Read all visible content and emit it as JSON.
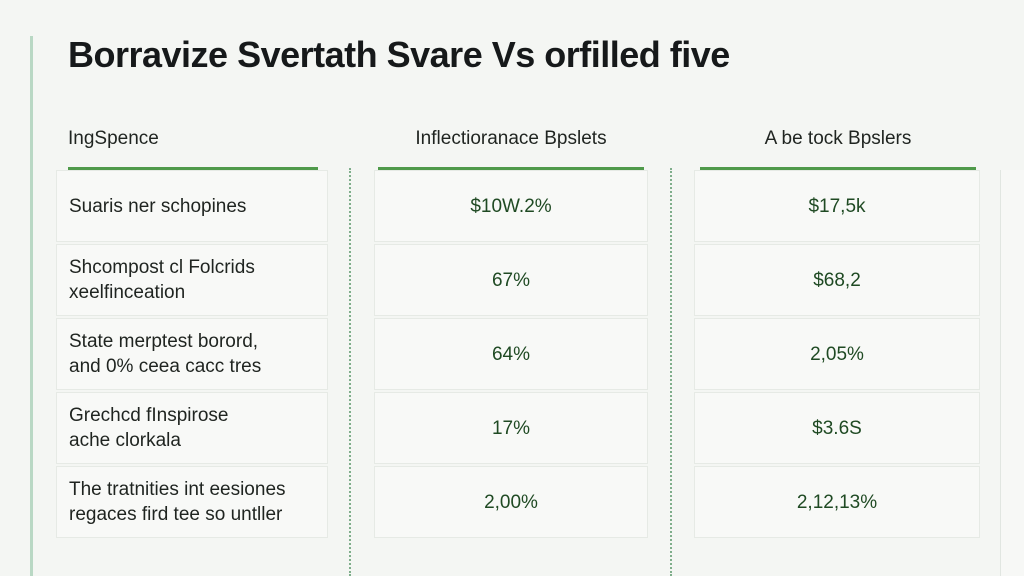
{
  "title": "Borravize Svertath Svare Vs orfilled five",
  "table": {
    "headers": [
      "IngSpence",
      "Inflectioranace Bpslets",
      "A be tock Bpslers"
    ],
    "rows": [
      {
        "label": "Suaris ner schopines",
        "col1": "$10W.2%",
        "col2": "$17,5k"
      },
      {
        "label": "Shcompost cl Folcrids\nxeelfinceation",
        "col1": "67%",
        "col2": "$68,2"
      },
      {
        "label": "State merptest borord,\nand 0% ceea cacc tres",
        "col1": "64%",
        "col2": "2,05%"
      },
      {
        "label": "Grechcd fInspirose\nache clorkala",
        "col1": "17%",
        "col2": "$3.6S"
      },
      {
        "label": "The tratnities int eesiones\nregaces fird tee so untller",
        "col1": "2,00%",
        "col2": "2,12,13%"
      }
    ]
  }
}
